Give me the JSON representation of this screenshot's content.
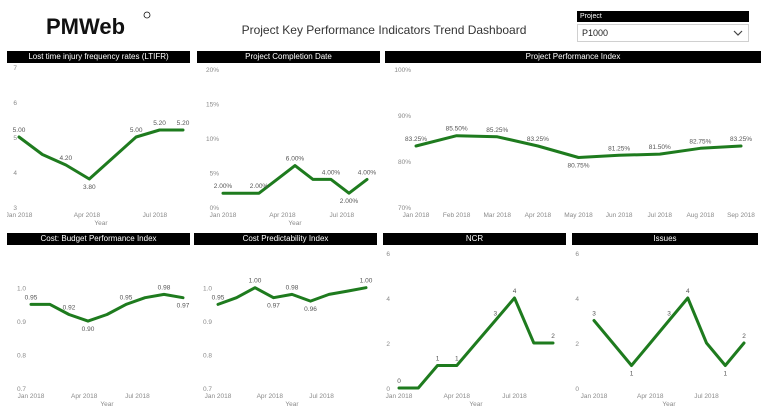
{
  "header": {
    "logo_text": "PMWeb",
    "dashboard_title": "Project Key Performance Indicators Trend Dashboard"
  },
  "filter": {
    "label": "Project",
    "value": "P1000",
    "icon": "chevron-down-icon"
  },
  "colors": {
    "line": "#1e7b1e",
    "header_bg": "#000000",
    "tick": "#8a8a8a",
    "label": "#555555"
  },
  "chart_data": [
    {
      "id": "ltifr",
      "type": "line",
      "title": "Lost time injury frequency rates (LTIFR)",
      "xlabel": "Year",
      "x_ticks": [
        "Jan 2018",
        "Apr 2018",
        "Jul 2018"
      ],
      "y_ticks": [
        "7",
        "6",
        "5",
        "4",
        "3"
      ],
      "ylim": [
        3,
        7
      ],
      "points": [
        5.0,
        4.5,
        4.2,
        3.8,
        4.4,
        5.0,
        5.2,
        5.2
      ],
      "labels": [
        "5.00",
        "",
        "4.20",
        "3.80",
        "",
        "5.00",
        "5.20",
        "5.20"
      ]
    },
    {
      "id": "completion",
      "type": "line",
      "title": "Project Completion Date",
      "xlabel": "Year",
      "x_ticks": [
        "Jan 2018",
        "Apr 2018",
        "Jul 2018"
      ],
      "y_ticks": [
        "20%",
        "15%",
        "10%",
        "5%",
        "0%"
      ],
      "ylim": [
        0,
        20
      ],
      "points": [
        2,
        2,
        2,
        4,
        6,
        4,
        4,
        2,
        4
      ],
      "labels": [
        "2.00%",
        "",
        "2.00%",
        "",
        "6.00%",
        "",
        "4.00%",
        "2.00%",
        "4.00%"
      ]
    },
    {
      "id": "performance",
      "type": "line",
      "title": "Project Performance Index",
      "xlabel": "",
      "x_ticks": [
        "Jan 2018",
        "Feb 2018",
        "Mar 2018",
        "Apr 2018",
        "May 2018",
        "Jun 2018",
        "Jul 2018",
        "Aug 2018",
        "Sep 2018"
      ],
      "y_ticks": [
        "100%",
        "90%",
        "80%",
        "70%"
      ],
      "ylim": [
        70,
        100
      ],
      "points": [
        83.25,
        85.5,
        85.25,
        83.25,
        80.75,
        81.25,
        81.5,
        82.75,
        83.25
      ],
      "labels": [
        "83.25%",
        "85.50%",
        "85.25%",
        "83.25%",
        "80.75%",
        "81.25%",
        "81.50%",
        "82.75%",
        "83.25%"
      ]
    },
    {
      "id": "budget",
      "type": "line",
      "title": "Cost: Budget Performance Index",
      "xlabel": "Year",
      "x_ticks": [
        "Jan 2018",
        "Apr 2018",
        "Jul 2018"
      ],
      "y_ticks": [
        "1.0",
        "0.9",
        "0.8",
        "0.7"
      ],
      "ylim": [
        0.7,
        1.05
      ],
      "points": [
        0.95,
        0.95,
        0.92,
        0.9,
        0.92,
        0.95,
        0.97,
        0.98,
        0.97
      ],
      "labels": [
        "0.95",
        "",
        "0.92",
        "0.90",
        "",
        "0.95",
        "",
        "0.98",
        "0.97"
      ]
    },
    {
      "id": "predictability",
      "type": "line",
      "title": "Cost Predictability Index",
      "xlabel": "Year",
      "x_ticks": [
        "Jan 2018",
        "Apr 2018",
        "Jul 2018"
      ],
      "y_ticks": [
        "1.0",
        "0.9",
        "0.8",
        "0.7"
      ],
      "ylim": [
        0.7,
        1.05
      ],
      "points": [
        0.95,
        0.97,
        1.0,
        0.97,
        0.98,
        0.96,
        0.98,
        0.99,
        1.0
      ],
      "labels": [
        "0.95",
        "",
        "1.00",
        "0.97",
        "0.98",
        "0.96",
        "",
        "",
        "1.00"
      ]
    },
    {
      "id": "ncr",
      "type": "line",
      "title": "NCR",
      "xlabel": "Year",
      "x_ticks": [
        "Jan 2018",
        "Apr 2018",
        "Jul 2018"
      ],
      "y_ticks": [
        "6",
        "4",
        "2",
        "0"
      ],
      "ylim": [
        0,
        6
      ],
      "points": [
        0,
        0,
        1,
        1,
        2,
        3,
        4,
        2,
        2
      ],
      "labels": [
        "0",
        "",
        "1",
        "1",
        "",
        "3",
        "4",
        "",
        "2"
      ]
    },
    {
      "id": "issues",
      "type": "line",
      "title": "Issues",
      "xlabel": "Year",
      "x_ticks": [
        "Jan 2018",
        "Apr 2018",
        "Jul 2018"
      ],
      "y_ticks": [
        "6",
        "4",
        "2",
        "0"
      ],
      "ylim": [
        0,
        6
      ],
      "points": [
        3,
        2,
        1,
        2,
        3,
        4,
        2,
        1,
        2
      ],
      "labels": [
        "3",
        "",
        "1",
        "",
        "3",
        "4",
        "",
        "1",
        "2"
      ]
    }
  ]
}
